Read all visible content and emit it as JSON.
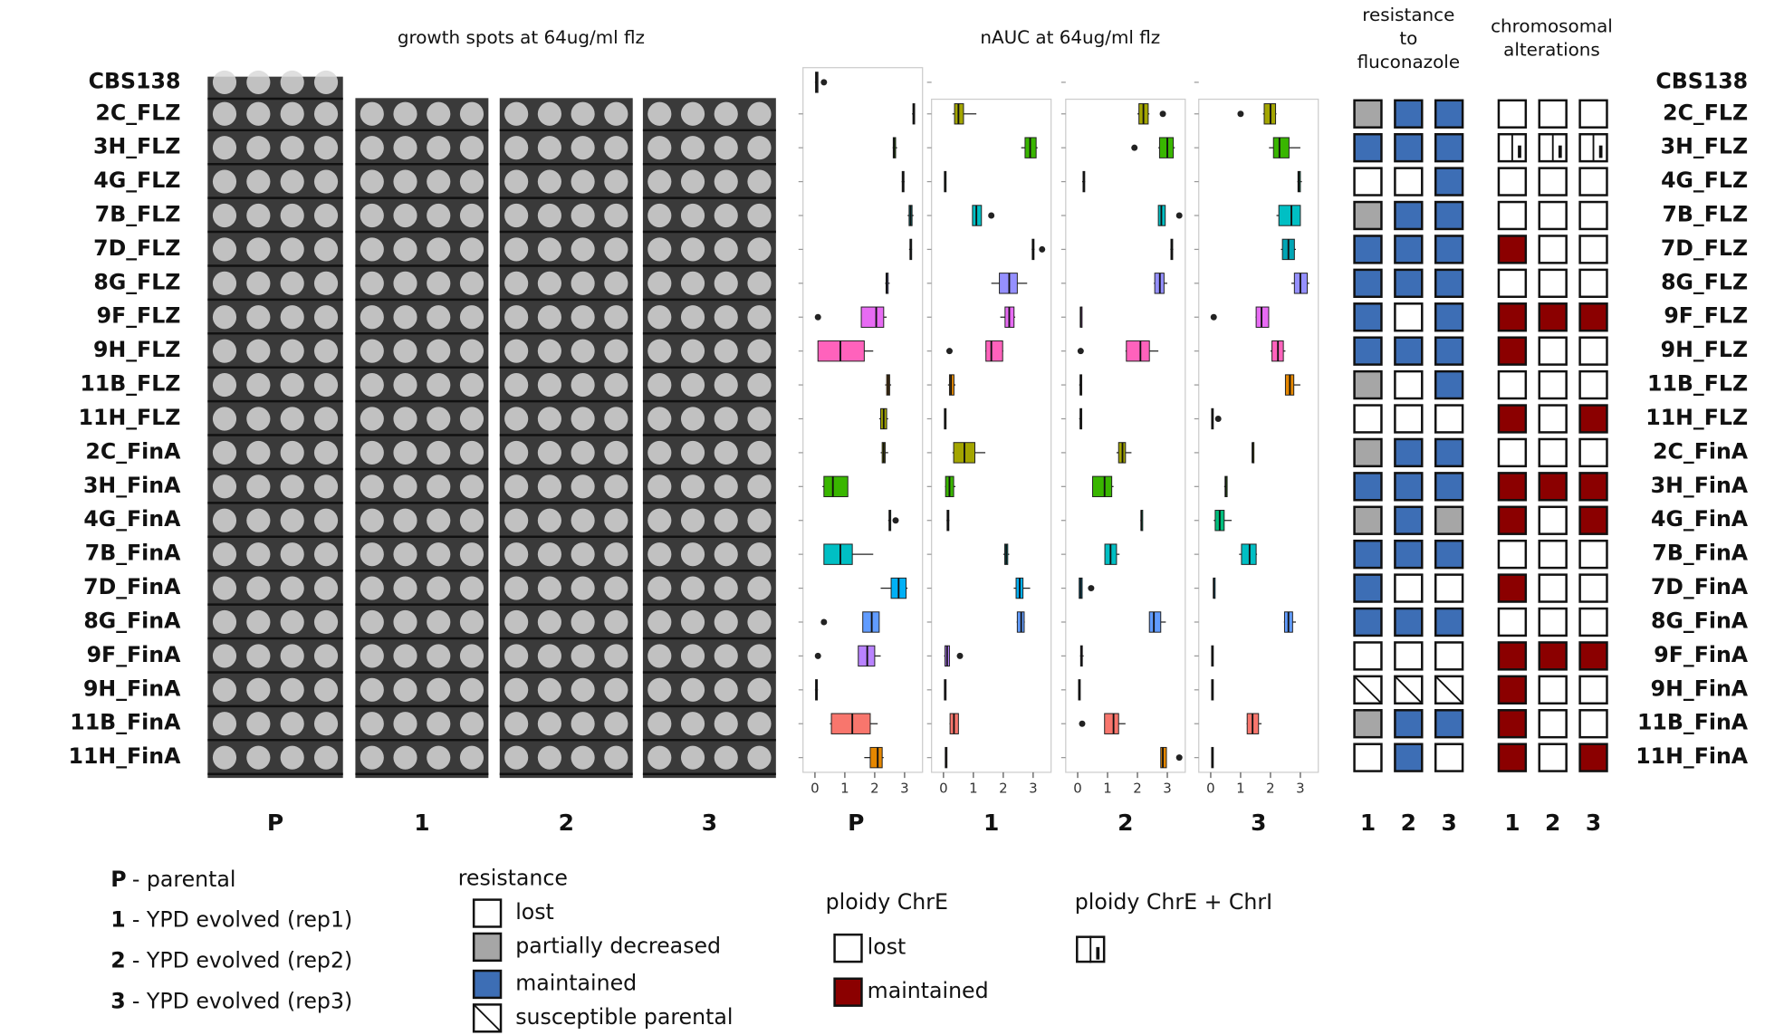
{
  "rows": [
    "CBS138",
    "2C_FLZ",
    "3H_FLZ",
    "4G_FLZ",
    "7B_FLZ",
    "7D_FLZ",
    "8G_FLZ",
    "9F_FLZ",
    "9H_FLZ",
    "11B_FLZ",
    "11H_FLZ",
    "2C_FinA",
    "3H_FinA",
    "4G_FinA",
    "7B_FinA",
    "7D_FinA",
    "8G_FinA",
    "9F_FinA",
    "9H_FinA",
    "11B_FinA",
    "11H_FinA"
  ],
  "growth": {
    "title": "growth spots at 64ug/ml flz",
    "panels": [
      "P",
      "1",
      "2",
      "3"
    ]
  },
  "chart_data": {
    "type": "box",
    "title": "nAUC at 64ug/ml flz",
    "xlim": [
      -0.4,
      3.6
    ],
    "xticks": [
      0,
      1,
      2,
      3
    ],
    "colors": [
      "#333333",
      "#A3A500",
      "#39B600",
      "#00BF7D",
      "#00BFC4",
      "#00A5B5",
      "#9590FF",
      "#E76BF3",
      "#FF62BC",
      "#E58700",
      "#A3A500",
      "#A3A500",
      "#39B600",
      "#00BF7D",
      "#00BFC4",
      "#00B0F6",
      "#619CFF",
      "#B983FF",
      "#E76BF3",
      "#F8766D",
      "#E58700"
    ],
    "panels": [
      {
        "label": "P",
        "boxes": [
          [
            0,
            0.02,
            0.05,
            0.1,
            0.1
          ],
          [
            3.25,
            3.28,
            3.3,
            3.32,
            3.35
          ],
          [
            2.6,
            2.62,
            2.65,
            2.7,
            2.75
          ],
          [
            2.9,
            2.92,
            2.95,
            2.98,
            3.0
          ],
          [
            3.1,
            3.15,
            3.2,
            3.25,
            3.3
          ],
          [
            3.15,
            3.18,
            3.2,
            3.22,
            3.25
          ],
          [
            2.35,
            2.38,
            2.4,
            2.45,
            2.5
          ],
          [
            1.55,
            1.55,
            2.05,
            2.3,
            2.4
          ],
          [
            0.1,
            0.1,
            0.85,
            1.65,
            1.95
          ],
          [
            2.35,
            2.4,
            2.45,
            2.5,
            2.55
          ],
          [
            2.15,
            2.2,
            2.3,
            2.4,
            2.45
          ],
          [
            2.2,
            2.25,
            2.3,
            2.35,
            2.45
          ],
          [
            0.25,
            0.3,
            0.6,
            1.1,
            1.1
          ],
          [
            2.45,
            2.48,
            2.5,
            2.52,
            2.55
          ],
          [
            0.3,
            0.3,
            0.85,
            1.25,
            1.95
          ],
          [
            2.2,
            2.55,
            2.8,
            3.05,
            3.1
          ],
          [
            1.6,
            1.6,
            1.9,
            2.15,
            2.15
          ],
          [
            1.45,
            1.45,
            1.75,
            2.0,
            2.2
          ],
          [
            0,
            0.02,
            0.05,
            0.08,
            0.1
          ],
          [
            0.5,
            0.55,
            1.25,
            1.85,
            2.1
          ],
          [
            1.65,
            1.85,
            2.1,
            2.25,
            2.3
          ]
        ],
        "outliers": [
          [
            0.3
          ],
          [],
          [],
          [],
          [],
          [],
          [],
          [
            0.1
          ],
          [],
          [],
          [],
          [],
          [],
          [
            2.7
          ],
          [],
          [],
          [
            0.3
          ],
          [
            0.1
          ],
          [],
          [],
          []
        ]
      },
      {
        "label": "1",
        "boxes": [
          null,
          [
            0.3,
            0.37,
            0.5,
            0.67,
            1.1
          ],
          [
            2.6,
            2.73,
            2.9,
            3.1,
            3.15
          ],
          [
            0.02,
            0.03,
            0.05,
            0.07,
            0.08
          ],
          [
            0.97,
            0.97,
            1.1,
            1.27,
            1.27
          ],
          [
            2.95,
            2.97,
            3.0,
            3.03,
            3.05
          ],
          [
            1.6,
            1.87,
            2.2,
            2.47,
            2.8
          ],
          [
            1.9,
            2.06,
            2.2,
            2.36,
            2.4
          ],
          [
            1.4,
            1.42,
            1.6,
            1.98,
            2.0
          ],
          [
            0.15,
            0.2,
            0.25,
            0.35,
            0.4
          ],
          [
            0.02,
            0.03,
            0.05,
            0.06,
            0.07
          ],
          [
            0.3,
            0.34,
            0.7,
            1.05,
            1.4
          ],
          [
            0.05,
            0.07,
            0.2,
            0.34,
            0.4
          ],
          [
            0.1,
            0.12,
            0.15,
            0.18,
            0.2
          ],
          [
            2.0,
            2.05,
            2.1,
            2.15,
            2.2
          ],
          [
            2.35,
            2.43,
            2.55,
            2.66,
            2.9
          ],
          [
            2.45,
            2.47,
            2.6,
            2.7,
            2.72
          ],
          [
            0.02,
            0.05,
            0.12,
            0.2,
            0.2
          ],
          [
            0.02,
            0.03,
            0.05,
            0.06,
            0.07
          ],
          [
            0.2,
            0.22,
            0.35,
            0.5,
            0.5
          ],
          [
            0.05,
            0.06,
            0.08,
            0.1,
            0.12
          ]
        ],
        "outliers": [
          [],
          [],
          [],
          [],
          [
            1.6
          ],
          [
            3.3
          ],
          [],
          [],
          [
            0.2
          ],
          [],
          [],
          [],
          [],
          [],
          [],
          [],
          [],
          [
            0.55
          ],
          [],
          [],
          []
        ]
      },
      {
        "label": "2",
        "boxes": [
          null,
          [
            2.0,
            2.05,
            2.2,
            2.36,
            2.4
          ],
          [
            2.7,
            2.74,
            3.0,
            3.2,
            3.25
          ],
          [
            0.15,
            0.18,
            0.2,
            0.22,
            0.25
          ],
          [
            2.7,
            2.7,
            2.8,
            2.93,
            2.93
          ],
          [
            3.1,
            3.12,
            3.15,
            3.18,
            3.2
          ],
          [
            2.55,
            2.58,
            2.75,
            2.89,
            3.0
          ],
          [
            0.08,
            0.09,
            0.1,
            0.11,
            0.12
          ],
          [
            1.6,
            1.63,
            2.1,
            2.4,
            2.7
          ],
          [
            0.05,
            0.08,
            0.1,
            0.12,
            0.15
          ],
          [
            0.05,
            0.08,
            0.1,
            0.12,
            0.15
          ],
          [
            1.3,
            1.37,
            1.5,
            1.6,
            1.8
          ],
          [
            0.5,
            0.5,
            0.9,
            1.14,
            1.2
          ],
          [
            2.1,
            2.12,
            2.13,
            2.15,
            2.17
          ],
          [
            0.9,
            0.91,
            1.1,
            1.3,
            1.4
          ],
          [
            0.05,
            0.05,
            0.1,
            0.15,
            0.15
          ],
          [
            2.4,
            2.4,
            2.55,
            2.78,
            2.95
          ],
          [
            0.08,
            0.1,
            0.12,
            0.15,
            0.2
          ],
          [
            0.02,
            0.03,
            0.05,
            0.06,
            0.07
          ],
          [
            0.9,
            0.9,
            1.2,
            1.37,
            1.6
          ],
          [
            2.78,
            2.78,
            2.85,
            2.97,
            2.97
          ]
        ],
        "outliers": [
          [],
          [
            2.85
          ],
          [
            1.9
          ],
          [],
          [
            3.4
          ],
          [],
          [],
          [],
          [
            0.1
          ],
          [],
          [],
          [],
          [],
          [],
          [],
          [
            0.45
          ],
          [],
          [],
          [],
          [
            0.15
          ],
          [
            3.4
          ]
        ]
      },
      {
        "label": "3",
        "boxes": [
          null,
          [
            1.75,
            1.79,
            2.0,
            2.17,
            2.2
          ],
          [
            1.95,
            2.1,
            2.3,
            2.62,
            3.0
          ],
          [
            2.9,
            2.92,
            2.95,
            3.0,
            3.05
          ],
          [
            2.2,
            2.28,
            2.7,
            3.0,
            3.0
          ],
          [
            2.35,
            2.4,
            2.6,
            2.8,
            2.85
          ],
          [
            2.7,
            2.8,
            3.0,
            3.23,
            3.3
          ],
          [
            1.5,
            1.52,
            1.7,
            1.94,
            1.95
          ],
          [
            2.0,
            2.05,
            2.25,
            2.43,
            2.5
          ],
          [
            2.5,
            2.5,
            2.65,
            2.78,
            3.0
          ],
          [
            0.02,
            0.03,
            0.05,
            0.07,
            0.08
          ],
          [
            1.38,
            1.39,
            1.4,
            1.41,
            1.42
          ],
          [
            0.45,
            0.48,
            0.5,
            0.55,
            0.55
          ],
          [
            0.1,
            0.15,
            0.3,
            0.45,
            0.7
          ],
          [
            0.95,
            1.03,
            1.3,
            1.52,
            1.55
          ],
          [
            0.08,
            0.09,
            0.1,
            0.12,
            0.14
          ],
          [
            2.45,
            2.47,
            2.6,
            2.74,
            2.85
          ],
          [
            0.02,
            0.03,
            0.05,
            0.06,
            0.07
          ],
          [
            0.02,
            0.03,
            0.05,
            0.06,
            0.07
          ],
          [
            1.2,
            1.22,
            1.4,
            1.6,
            1.7
          ],
          [
            0.02,
            0.03,
            0.05,
            0.06,
            0.07
          ]
        ],
        "outliers": [
          [],
          [
            1.0
          ],
          [],
          [],
          [],
          [],
          [],
          [
            0.1
          ],
          [],
          [],
          [
            0.25
          ],
          [],
          [],
          [],
          [],
          [],
          [],
          [],
          [],
          [],
          []
        ]
      }
    ]
  },
  "resistance": {
    "title": [
      "resistance",
      "to",
      "fluconazole"
    ],
    "columns": [
      "1",
      "2",
      "3"
    ],
    "legend_title": "resistance",
    "levels": [
      {
        "label": "lost",
        "color": "#ffffff"
      },
      {
        "label": "partially decreased",
        "color": "#a6a6a6"
      },
      {
        "label": "maintained",
        "color": "#3d6eb5"
      },
      {
        "label": "susceptible parental",
        "color": "#ffffff",
        "hatch": true
      }
    ],
    "values": [
      null,
      [
        1,
        2,
        2
      ],
      [
        2,
        2,
        2
      ],
      [
        0,
        0,
        2
      ],
      [
        1,
        2,
        2
      ],
      [
        2,
        2,
        2
      ],
      [
        2,
        2,
        2
      ],
      [
        2,
        0,
        2
      ],
      [
        2,
        2,
        2
      ],
      [
        1,
        0,
        2
      ],
      [
        0,
        0,
        0
      ],
      [
        1,
        2,
        2
      ],
      [
        2,
        2,
        2
      ],
      [
        1,
        2,
        1
      ],
      [
        2,
        2,
        2
      ],
      [
        2,
        0,
        0
      ],
      [
        2,
        2,
        2
      ],
      [
        0,
        0,
        0
      ],
      [
        3,
        3,
        3
      ],
      [
        1,
        2,
        2
      ],
      [
        0,
        2,
        0
      ]
    ]
  },
  "chromosomal": {
    "title": [
      "chromosomal",
      "alterations"
    ],
    "columns": [
      "1",
      "2",
      "3"
    ],
    "legend_title": "ploidy ChrE",
    "levels": [
      {
        "label": "lost",
        "color": "#ffffff"
      },
      {
        "label": "maintained",
        "color": "#8b0000"
      }
    ],
    "combined_title": "ploidy ChrE + ChrI",
    "values": [
      null,
      [
        0,
        0,
        0
      ],
      [
        2,
        2,
        2
      ],
      [
        0,
        0,
        0
      ],
      [
        0,
        0,
        0
      ],
      [
        1,
        0,
        0
      ],
      [
        0,
        0,
        0
      ],
      [
        1,
        1,
        1
      ],
      [
        1,
        0,
        0
      ],
      [
        0,
        0,
        0
      ],
      [
        1,
        0,
        1
      ],
      [
        0,
        0,
        0
      ],
      [
        1,
        1,
        1
      ],
      [
        1,
        0,
        1
      ],
      [
        0,
        0,
        0
      ],
      [
        1,
        0,
        0
      ],
      [
        0,
        0,
        0
      ],
      [
        1,
        1,
        1
      ],
      [
        1,
        0,
        0
      ],
      [
        1,
        0,
        0
      ],
      [
        1,
        0,
        1
      ]
    ]
  },
  "key": [
    {
      "symbol": "P",
      "text": "- parental"
    },
    {
      "symbol": "1",
      "text": "- YPD evolved (rep1)"
    },
    {
      "symbol": "2",
      "text": "- YPD evolved (rep2)"
    },
    {
      "symbol": "3",
      "text": "- YPD evolved (rep3)"
    }
  ]
}
